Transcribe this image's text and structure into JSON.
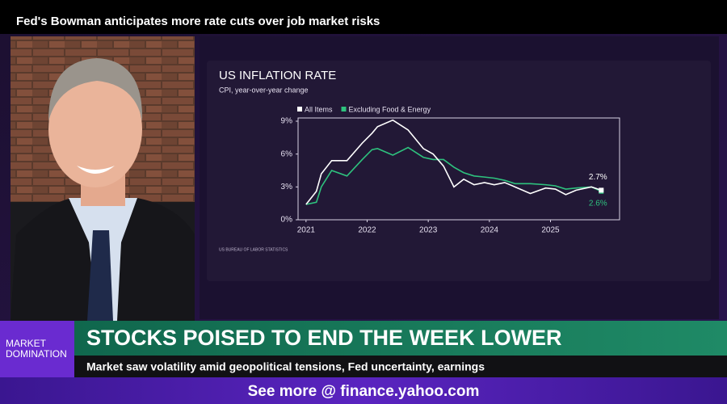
{
  "header": {
    "title": "Fed's Bowman anticipates more rate cuts over job market risks"
  },
  "chart_data": {
    "type": "line",
    "title": "US INFLATION RATE",
    "subtitle": "CPI, year-over-year change",
    "x": [
      2021.0,
      2021.17,
      2021.25,
      2021.42,
      2021.67,
      2021.92,
      2022.08,
      2022.17,
      2022.42,
      2022.67,
      2022.92,
      2023.08,
      2023.25,
      2023.42,
      2023.58,
      2023.75,
      2023.92,
      2024.08,
      2024.25,
      2024.42,
      2024.67,
      2024.92,
      2025.08,
      2025.25,
      2025.42,
      2025.67,
      2025.83
    ],
    "series": [
      {
        "name": "All Items",
        "color": "#ffffff",
        "values": [
          1.4,
          2.6,
          4.2,
          5.4,
          5.4,
          7.0,
          7.9,
          8.5,
          9.1,
          8.2,
          6.5,
          6.0,
          4.9,
          3.0,
          3.7,
          3.2,
          3.4,
          3.2,
          3.4,
          3.0,
          2.4,
          2.9,
          2.8,
          2.3,
          2.7,
          3.0,
          2.7
        ],
        "value_labels": [
          null,
          null,
          null,
          null,
          null,
          null,
          null,
          null,
          null,
          null,
          null,
          null,
          null,
          null,
          null,
          null,
          null,
          null,
          null,
          null,
          null,
          null,
          null,
          null,
          null,
          null,
          "2.7%"
        ]
      },
      {
        "name": "Excluding Food & Energy",
        "color": "#2ec27e",
        "values": [
          1.4,
          1.6,
          3.0,
          4.5,
          4.0,
          5.5,
          6.4,
          6.5,
          5.9,
          6.6,
          5.7,
          5.5,
          5.5,
          4.8,
          4.3,
          4.0,
          3.9,
          3.8,
          3.6,
          3.3,
          3.3,
          3.2,
          3.1,
          2.8,
          2.9,
          3.0,
          2.6
        ],
        "value_labels": [
          null,
          null,
          null,
          null,
          null,
          null,
          null,
          null,
          null,
          null,
          null,
          null,
          null,
          null,
          null,
          null,
          null,
          null,
          null,
          null,
          null,
          null,
          null,
          null,
          null,
          null,
          "2.6%"
        ]
      }
    ],
    "xlim": [
      2020.87,
      2026.13
    ],
    "xticks": [
      2021,
      2022,
      2023,
      2024,
      2025
    ],
    "ylim": [
      0,
      9
    ],
    "yticks": [
      {
        "value": 0,
        "label": "0%"
      },
      {
        "value": 3,
        "label": "3%"
      },
      {
        "value": 6,
        "label": "6%"
      },
      {
        "value": 9,
        "label": "9%"
      }
    ],
    "source": "US BUREAU OF LABOR STATISTICS"
  },
  "lower_third": {
    "show_line1": "MARKET",
    "show_line2": "DOMINATION",
    "headline": "STOCKS POISED TO END THE WEEK LOWER",
    "subheadline": "Market saw volatility amid geopolitical tensions, Fed uncertainty, earnings"
  },
  "footer": {
    "text": "See more @ finance.yahoo.com"
  }
}
